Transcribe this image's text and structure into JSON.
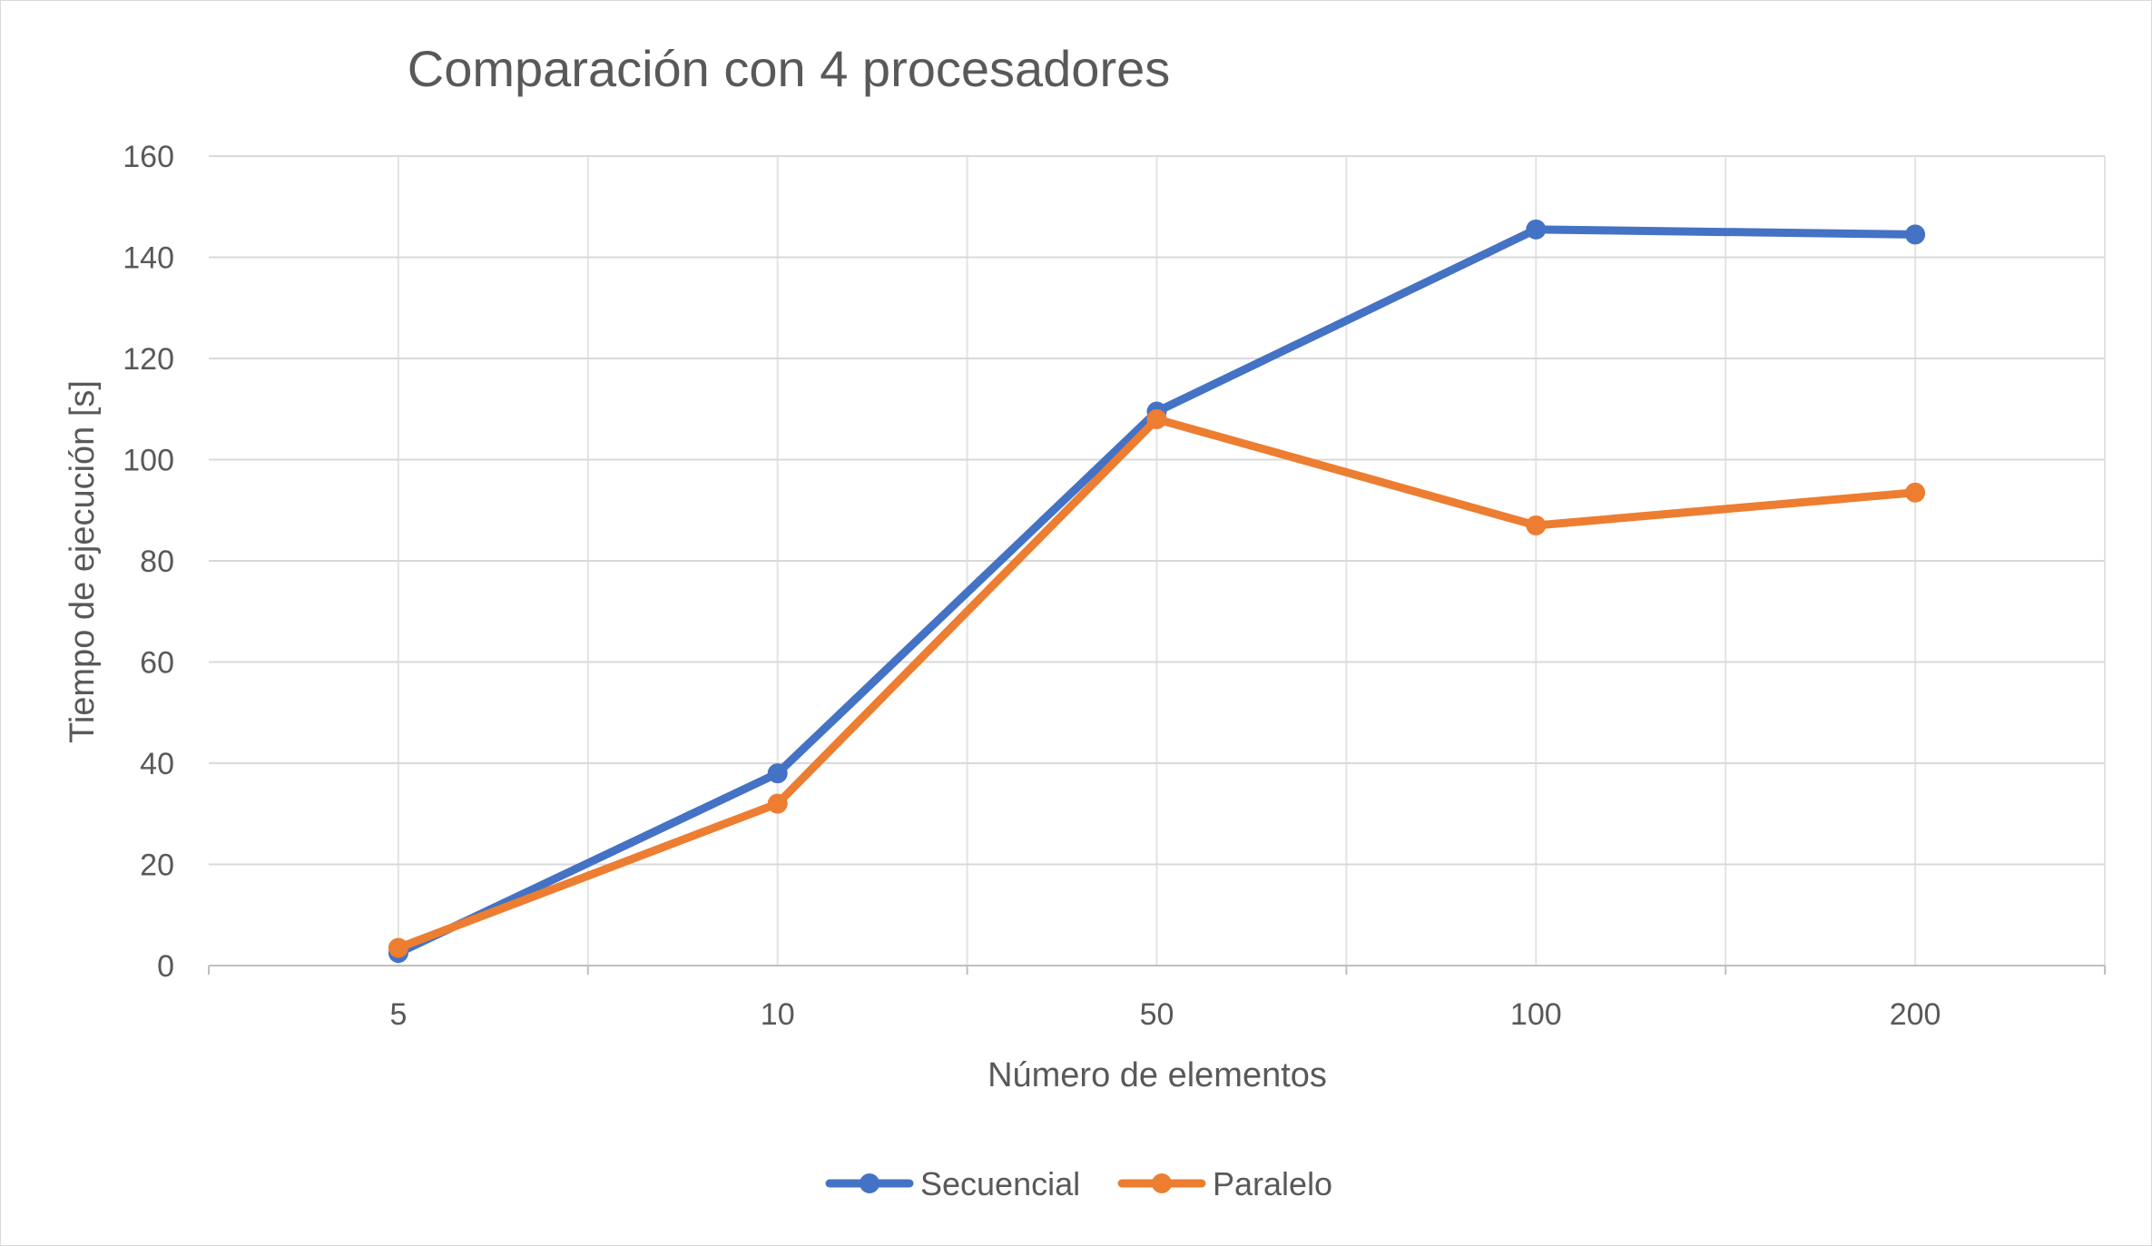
{
  "chart_data": {
    "type": "line",
    "title": "Comparación con 4 procesadores",
    "xlabel": "Número de elementos",
    "ylabel": "Tiempo de ejecución [s]",
    "categories": [
      "5",
      "10",
      "50",
      "100",
      "200"
    ],
    "ylim": [
      0,
      160
    ],
    "yticks": [
      0,
      20,
      40,
      60,
      80,
      100,
      120,
      140,
      160
    ],
    "grid": true,
    "legend_position": "bottom",
    "series": [
      {
        "name": "Secuencial",
        "color": "#4472c4",
        "values": [
          2.5,
          38,
          109.5,
          145.5,
          144.5
        ]
      },
      {
        "name": "Paralelo",
        "color": "#ed7d31",
        "values": [
          3.5,
          32,
          108,
          87,
          93.5
        ]
      }
    ]
  }
}
